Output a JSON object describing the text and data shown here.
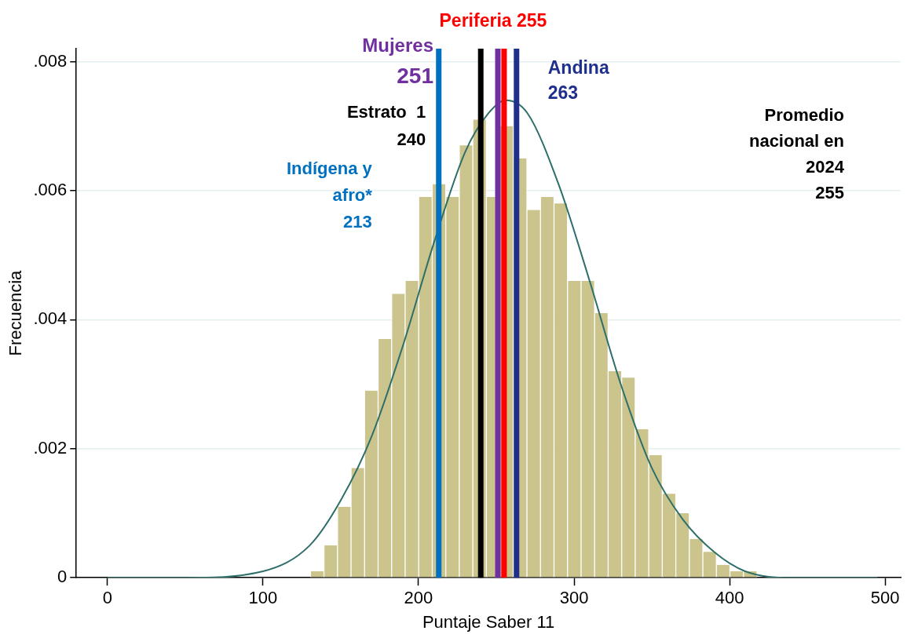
{
  "chart_data": {
    "type": "histogram",
    "xlabel": "Puntaje Saber 11",
    "ylabel": "Frecuencia",
    "bins": [
      0,
      8.7,
      17.4,
      26.1,
      34.8,
      43.5,
      52.2,
      60.9,
      69.6,
      78.3,
      87,
      95.7,
      104.4,
      113.1,
      121.8,
      130.5,
      139.2,
      147.9,
      156.6,
      165.3,
      174,
      182.7,
      191.4,
      200.1,
      208.8,
      217.5,
      226.2,
      234.9,
      243.6,
      252.3,
      261,
      269.7,
      278.4,
      287.1,
      295.8,
      304.5,
      313.2,
      321.9,
      330.6,
      339.3,
      348,
      356.7,
      365.4,
      374.1,
      382.8,
      391.5,
      400.2,
      408.9,
      417.6,
      426.3,
      435,
      443.7,
      452.4,
      461.1,
      469.8,
      478.5,
      487.2,
      495.9
    ],
    "values": [
      0,
      0,
      0,
      0,
      0,
      0,
      0,
      0,
      0,
      0,
      0,
      0,
      0,
      0,
      0,
      0.0001,
      0.0005,
      0.0011,
      0.0017,
      0.0029,
      0.0037,
      0.0044,
      0.0046,
      0.0059,
      0.0061,
      0.0059,
      0.0067,
      0.0071,
      0.0059,
      0.007,
      0.0065,
      0.0057,
      0.0059,
      0.0058,
      0.0046,
      0.0046,
      0.0041,
      0.0032,
      0.0031,
      0.0023,
      0.0019,
      0.0013,
      0.001,
      0.0006,
      0.0004,
      0.0002,
      0.0001,
      0.0001,
      0,
      0,
      0,
      0,
      0,
      0,
      0,
      0,
      0
    ],
    "color": "#cbc48c",
    "series": [
      {
        "type": "line",
        "color": "#2e6f6a",
        "x": [
          0,
          50,
          100,
          130,
          150,
          170,
          190,
          210,
          230,
          245,
          256,
          270,
          290,
          310,
          330,
          350,
          370,
          390,
          410,
          440,
          470,
          495
        ],
        "values": [
          0,
          0,
          0.0001,
          0.0005,
          0.0012,
          0.0022,
          0.0036,
          0.0052,
          0.0066,
          0.0072,
          0.0074,
          0.0072,
          0.0061,
          0.0046,
          0.003,
          0.0017,
          0.0009,
          0.0004,
          0.0001,
          0,
          0,
          0
        ]
      }
    ],
    "xlim": [
      -20,
      510
    ],
    "xticks": [
      0,
      100,
      200,
      300,
      400,
      500
    ],
    "ylim": [
      0,
      0.0082
    ],
    "yticks": [
      0,
      {
        "value": 0.002,
        "label": ".002"
      },
      {
        "value": 0.004,
        "label": ".004"
      },
      {
        "value": 0.006,
        "label": ".006"
      },
      {
        "value": 0.008,
        "label": ".008"
      }
    ],
    "grid": "y",
    "legend": false,
    "ref_lines": [
      {
        "axis": "x",
        "value": 213,
        "label": "Indígena y\nafro*\n213",
        "color": "#0070c0"
      },
      {
        "axis": "x",
        "value": 240,
        "label": "Estrato  1\n240",
        "color": "#000000"
      },
      {
        "axis": "x",
        "value": 251,
        "label": "Mujeres\n251",
        "color": "#7030a0"
      },
      {
        "axis": "x",
        "value": 255,
        "label": "Periferia 255",
        "color": "#ff0000"
      },
      {
        "axis": "x",
        "value": 263,
        "label": "Andina\n263",
        "color": "#1f2f8c"
      }
    ],
    "annotations": [
      "Promedio\nnacional en\n2024\n255"
    ]
  }
}
